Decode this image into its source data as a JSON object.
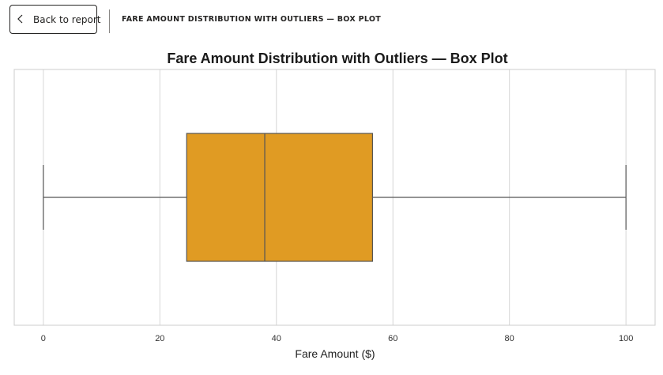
{
  "header": {
    "back_label": "Back to report",
    "page_title": "FARE AMOUNT DISTRIBUTION WITH OUTLIERS — BOX PLOT"
  },
  "chart_data": {
    "type": "box",
    "orientation": "horizontal",
    "title": "Fare Amount Distribution with Outliers — Box Plot",
    "xlabel": "Fare Amount ($)",
    "ylabel": "",
    "xlim": [
      -5,
      105
    ],
    "xticks": [
      0,
      20,
      40,
      60,
      80,
      100
    ],
    "grid": true,
    "box": {
      "whisker_low": 0,
      "q1": 24.6,
      "median": 38,
      "q3": 56.5,
      "whisker_high": 100
    },
    "box_color": "#e09b23",
    "line_color": "#555555",
    "grid_color": "#d6d6d6"
  }
}
